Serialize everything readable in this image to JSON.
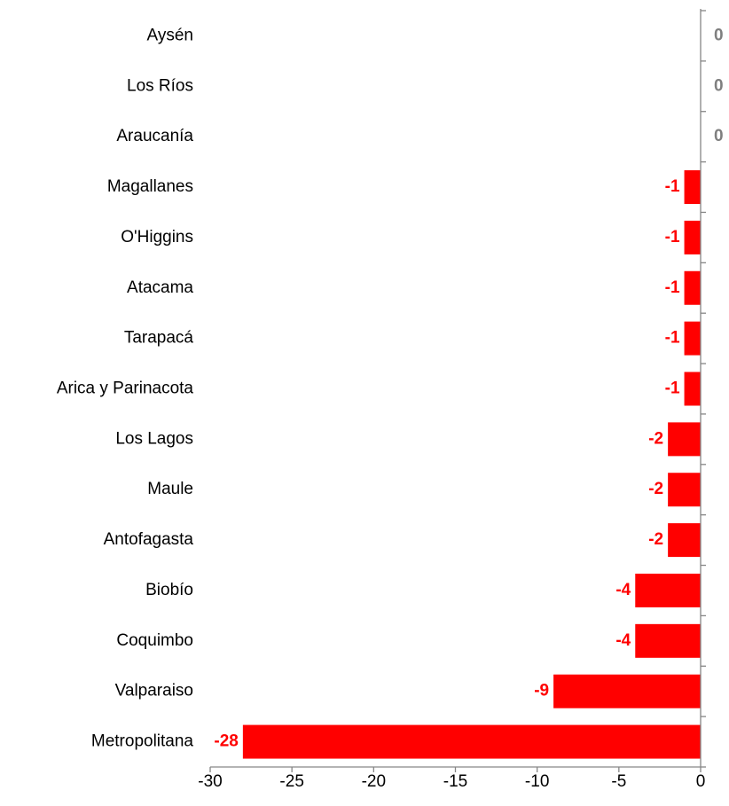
{
  "chart_data": {
    "type": "hbar",
    "categories": [
      "Aysén",
      "Los Ríos",
      "Araucanía",
      "Magallanes",
      "O'Higgins",
      "Atacama",
      "Tarapacá",
      "Arica y Parinacota",
      "Los Lagos",
      "Maule",
      "Antofagasta",
      "Biobío",
      "Coquimbo",
      "Valparaiso",
      "Metropolitana"
    ],
    "values": [
      0,
      0,
      0,
      -1,
      -1,
      -1,
      -1,
      -1,
      -2,
      -2,
      -2,
      -4,
      -4,
      -9,
      -28
    ],
    "color": "#ff0000",
    "xlim": [
      -30,
      0
    ],
    "xticks": [
      -30,
      -25,
      -20,
      -15,
      -10,
      -5,
      0
    ]
  }
}
